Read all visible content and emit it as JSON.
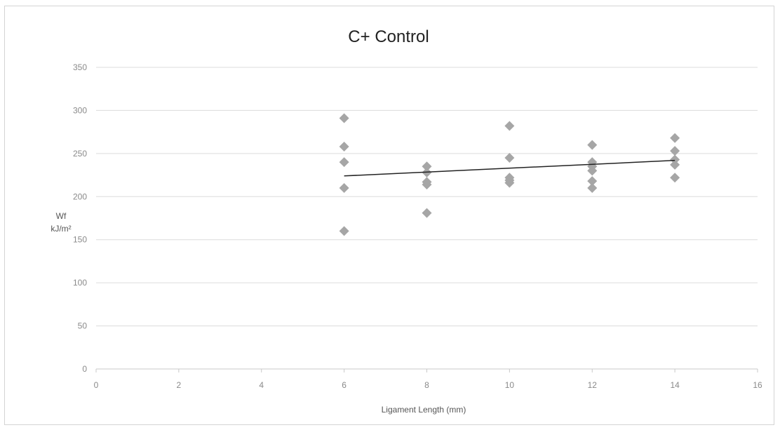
{
  "chart_data": {
    "type": "scatter",
    "title": "C+ Control",
    "xlabel": "Ligament Length (mm)",
    "ylabel_line1": "Wf",
    "ylabel_line2": "kJ/m²",
    "xlim": [
      0,
      16
    ],
    "ylim": [
      0,
      350
    ],
    "x_ticks": [
      0,
      2,
      4,
      6,
      8,
      10,
      12,
      14,
      16
    ],
    "y_ticks": [
      0,
      50,
      100,
      150,
      200,
      250,
      300,
      350
    ],
    "grid": true,
    "legend": "none",
    "series": [
      {
        "marker": "diamond",
        "color": "#a6a6a6",
        "points": [
          {
            "x": 6,
            "y": 291
          },
          {
            "x": 6,
            "y": 258
          },
          {
            "x": 6,
            "y": 240
          },
          {
            "x": 6,
            "y": 210
          },
          {
            "x": 6,
            "y": 160
          },
          {
            "x": 8,
            "y": 235
          },
          {
            "x": 8,
            "y": 228
          },
          {
            "x": 8,
            "y": 217
          },
          {
            "x": 8,
            "y": 214
          },
          {
            "x": 8,
            "y": 181
          },
          {
            "x": 10,
            "y": 282
          },
          {
            "x": 10,
            "y": 245
          },
          {
            "x": 10,
            "y": 222
          },
          {
            "x": 10,
            "y": 219
          },
          {
            "x": 10,
            "y": 216
          },
          {
            "x": 12,
            "y": 260
          },
          {
            "x": 12,
            "y": 240
          },
          {
            "x": 12,
            "y": 235
          },
          {
            "x": 12,
            "y": 230
          },
          {
            "x": 12,
            "y": 218
          },
          {
            "x": 12,
            "y": 210
          },
          {
            "x": 14,
            "y": 268
          },
          {
            "x": 14,
            "y": 253
          },
          {
            "x": 14,
            "y": 243
          },
          {
            "x": 14,
            "y": 237
          },
          {
            "x": 14,
            "y": 222
          }
        ]
      }
    ],
    "trendline": {
      "type": "linear",
      "color": "#222222",
      "x": [
        6,
        14
      ],
      "y": [
        224,
        242
      ]
    }
  }
}
